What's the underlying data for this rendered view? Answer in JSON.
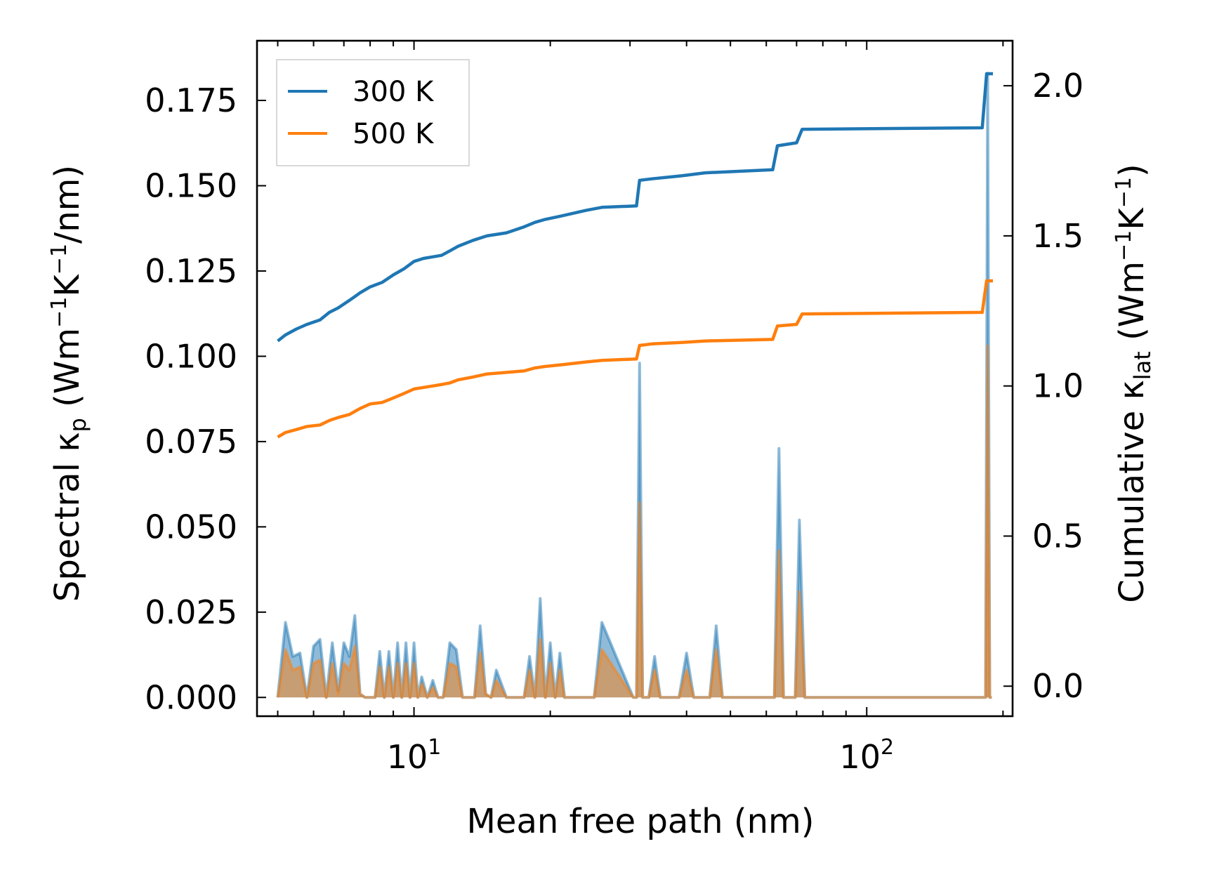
{
  "chart_data": {
    "type": "line",
    "xscale": "log",
    "xlabel": "Mean free path (nm)",
    "xlim": [
      4.5,
      210
    ],
    "x_ticks": [
      {
        "value": 10,
        "base": "10",
        "exp": "1"
      },
      {
        "value": 100,
        "base": "10",
        "exp": "2"
      }
    ],
    "ylabel_left": {
      "pre": "Spectral κ",
      "sub": "p",
      "mid": " (Wm",
      "sup1": "−1",
      "mid2": "K",
      "sup2": "−1",
      "post": "/nm)"
    },
    "ylabel_right": {
      "pre": "Cumulative κ",
      "sub": "lat",
      "mid": " (Wm",
      "sup1": "−1",
      "mid2": "K",
      "sup2": "−1",
      "post": ")"
    },
    "ylim_left": [
      -0.0055,
      0.1925
    ],
    "ylim_right": [
      -0.1,
      2.15
    ],
    "yticks_left": [
      "0.000",
      "0.025",
      "0.050",
      "0.075",
      "0.100",
      "0.125",
      "0.150",
      "0.175"
    ],
    "yticks_right": [
      "0.0",
      "0.5",
      "1.0",
      "1.5",
      "2.0"
    ],
    "legend": {
      "position": "top-left",
      "entries": [
        "300 K",
        "500 K"
      ]
    },
    "series": [
      {
        "name": "300 K",
        "color": "#1f77b4",
        "cumulative": {
          "x": [
            5,
            5.2,
            5.5,
            5.8,
            6.2,
            6.5,
            6.8,
            7.2,
            7.6,
            8.0,
            8.5,
            9.0,
            9.5,
            10.0,
            10.5,
            11.0,
            11.5,
            12.0,
            12.5,
            13.5,
            14.5,
            16.0,
            17.5,
            18.5,
            19.5,
            21.0,
            24.0,
            26.0,
            31.0,
            31.5,
            33.5,
            39.0,
            44.0,
            62.0,
            63.5,
            70.0,
            72.0,
            180.0,
            184.0,
            190.0
          ],
          "y": [
            1.15,
            1.17,
            1.19,
            1.205,
            1.22,
            1.245,
            1.26,
            1.285,
            1.31,
            1.33,
            1.345,
            1.37,
            1.39,
            1.415,
            1.425,
            1.43,
            1.435,
            1.45,
            1.465,
            1.485,
            1.5,
            1.51,
            1.53,
            1.545,
            1.555,
            1.565,
            1.585,
            1.595,
            1.6,
            1.685,
            1.69,
            1.7,
            1.71,
            1.72,
            1.8,
            1.81,
            1.855,
            1.86,
            2.04,
            2.04
          ]
        },
        "spectral": {
          "x": [
            5,
            5.2,
            5.4,
            5.6,
            5.8,
            6.0,
            6.2,
            6.4,
            6.6,
            6.8,
            7.0,
            7.2,
            7.4,
            7.6,
            7.8,
            8.0,
            8.2,
            8.4,
            8.6,
            8.8,
            9.0,
            9.2,
            9.4,
            9.6,
            9.8,
            10.0,
            10.2,
            10.4,
            10.7,
            11.0,
            11.3,
            11.6,
            12.0,
            12.4,
            12.8,
            13.2,
            13.6,
            14.0,
            14.4,
            14.8,
            15.2,
            16.0,
            17.0,
            17.5,
            18.0,
            18.5,
            19.0,
            19.5,
            20.0,
            20.5,
            21.0,
            21.5,
            24.0,
            25.0,
            26.0,
            30.5,
            31.0,
            31.5,
            32.0,
            32.5,
            33.0,
            34.0,
            35.0,
            38.5,
            40.0,
            41.5,
            45.0,
            46.5,
            48.0,
            61.5,
            62.5,
            64.0,
            65.5,
            69.5,
            71.0,
            73.0,
            180.0,
            183.0,
            185.0,
            187.0,
            189.0
          ],
          "y": [
            0.0,
            0.022,
            0.012,
            0.013,
            0.0,
            0.015,
            0.017,
            0.0,
            0.016,
            0.002,
            0.016,
            0.012,
            0.024,
            0.001,
            0.0,
            0.0,
            0.0,
            0.0135,
            0.0,
            0.0135,
            0.0,
            0.016,
            0.0,
            0.016,
            0.0,
            0.016,
            0.0,
            0.006,
            0.0,
            0.005,
            0.0,
            0.0,
            0.016,
            0.014,
            0.0,
            0.0,
            0.0,
            0.021,
            0.001,
            0.0,
            0.008,
            0.0,
            0.0,
            0.0,
            0.012,
            0.0,
            0.029,
            0.0,
            0.016,
            0.0,
            0.013,
            0.0,
            0.0,
            0.0,
            0.022,
            0.0,
            0.0,
            0.098,
            0.0,
            0.0,
            0.0,
            0.012,
            0.0,
            0.0,
            0.013,
            0.0,
            0.0,
            0.021,
            0.0,
            0.0,
            0.0,
            0.073,
            0.0,
            0.0,
            0.052,
            0.0,
            0.0,
            0.0,
            0.183,
            0.0,
            0.0
          ]
        }
      },
      {
        "name": "500 K",
        "color": "#ff7f0e",
        "cumulative": {
          "x": [
            5,
            5.2,
            5.5,
            5.8,
            6.2,
            6.5,
            6.8,
            7.2,
            7.6,
            8.0,
            8.5,
            9.0,
            9.5,
            10.0,
            10.5,
            11.0,
            11.5,
            12.0,
            12.5,
            13.5,
            14.5,
            16.0,
            17.5,
            18.5,
            19.5,
            21.0,
            24.0,
            26.0,
            31.0,
            31.5,
            33.5,
            39.0,
            44.0,
            62.0,
            63.5,
            70.0,
            72.0,
            180.0,
            184.0,
            190.0
          ],
          "y": [
            0.83,
            0.845,
            0.855,
            0.865,
            0.87,
            0.885,
            0.895,
            0.905,
            0.925,
            0.94,
            0.945,
            0.96,
            0.975,
            0.99,
            0.995,
            1.0,
            1.005,
            1.01,
            1.02,
            1.03,
            1.04,
            1.045,
            1.05,
            1.06,
            1.065,
            1.07,
            1.08,
            1.085,
            1.09,
            1.135,
            1.14,
            1.145,
            1.15,
            1.155,
            1.2,
            1.205,
            1.24,
            1.245,
            1.35,
            1.35
          ]
        },
        "spectral": {
          "x": [
            5,
            5.2,
            5.4,
            5.6,
            5.8,
            6.0,
            6.2,
            6.4,
            6.6,
            6.8,
            7.0,
            7.2,
            7.4,
            7.6,
            7.8,
            8.0,
            8.2,
            8.4,
            8.6,
            8.8,
            9.0,
            9.2,
            9.4,
            9.6,
            9.8,
            10.0,
            10.2,
            10.4,
            10.7,
            11.0,
            11.3,
            11.6,
            12.0,
            12.4,
            12.8,
            13.2,
            13.6,
            14.0,
            14.4,
            14.8,
            15.2,
            16.0,
            17.0,
            17.5,
            18.0,
            18.5,
            19.0,
            19.5,
            20.0,
            20.5,
            21.0,
            21.5,
            24.0,
            25.0,
            26.0,
            30.5,
            31.0,
            31.5,
            32.0,
            32.5,
            33.0,
            34.0,
            35.0,
            38.5,
            40.0,
            41.5,
            45.0,
            46.5,
            48.0,
            61.5,
            62.5,
            64.0,
            65.5,
            69.5,
            71.0,
            73.0,
            180.0,
            183.0,
            185.0,
            187.0,
            189.0
          ],
          "y": [
            0.0,
            0.014,
            0.008,
            0.009,
            0.0,
            0.01,
            0.011,
            0.0,
            0.01,
            0.001,
            0.01,
            0.008,
            0.015,
            0.001,
            0.0,
            0.0,
            0.0,
            0.009,
            0.0,
            0.009,
            0.0,
            0.01,
            0.0,
            0.01,
            0.0,
            0.01,
            0.0,
            0.004,
            0.0,
            0.003,
            0.0,
            0.0,
            0.01,
            0.009,
            0.0,
            0.0,
            0.0,
            0.013,
            0.001,
            0.0,
            0.005,
            0.0,
            0.0,
            0.0,
            0.008,
            0.0,
            0.017,
            0.0,
            0.01,
            0.0,
            0.008,
            0.0,
            0.0,
            0.0,
            0.014,
            0.0,
            0.0,
            0.057,
            0.0,
            0.0,
            0.0,
            0.008,
            0.0,
            0.0,
            0.008,
            0.0,
            0.0,
            0.014,
            0.0,
            0.0,
            0.0,
            0.043,
            0.0,
            0.0,
            0.031,
            0.0,
            0.0,
            0.0,
            0.103,
            0.0,
            0.0
          ]
        }
      }
    ]
  }
}
